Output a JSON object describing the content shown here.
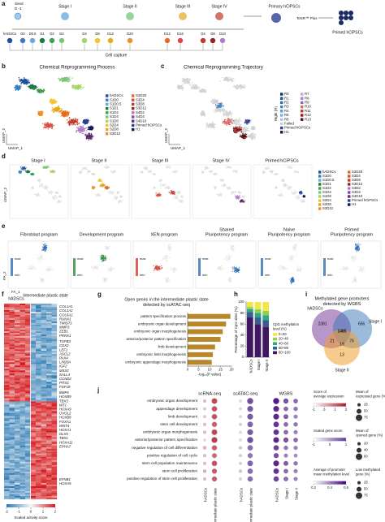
{
  "panel_labels": [
    "a",
    "b",
    "c",
    "d",
    "e",
    "f",
    "g",
    "h",
    "i",
    "j"
  ],
  "a": {
    "seed": "Seed",
    "seed_day": "D -1",
    "stages": [
      "Stage I",
      "Stage II",
      "Stage III",
      "Stage IV"
    ],
    "primary": "Primary hCiPSCs",
    "medium": "TeSR™ Plus",
    "primed": "Primed hCiPSCs",
    "capture": "Cell capture",
    "timepoints": [
      "hADSCs",
      "D0",
      "D0.5",
      "D1",
      "D2",
      "D4",
      "D4",
      "D8",
      "D12",
      "D20",
      "D12",
      "D16",
      "D4",
      "D8",
      "D10"
    ]
  },
  "b": {
    "title": "Chemical Reprogramming Process",
    "x_label": "UMAP_1",
    "y_label": "UMAP_2",
    "legend": [
      "hADSCs",
      "S1D0",
      "S1D0.5",
      "S1D1",
      "S1D2",
      "S1D4",
      "S1D8",
      "S2D4",
      "S2D8",
      "S2D12",
      "S2D20",
      "S3D4",
      "S3D8",
      "S3D12",
      "S4D2",
      "S4D4",
      "S4D10",
      "Primed hCiPSCs",
      "H1"
    ],
    "colors": [
      "#1f4e9c",
      "#3a7cc7",
      "#6aa8dd",
      "#1e7a45",
      "#3da04f",
      "#7cc576",
      "#a5d36b",
      "#f4c430",
      "#e6a817",
      "#f28c28",
      "#e8691f",
      "#d94a3d",
      "#c0392b",
      "#93262a",
      "#b07cc6",
      "#8e44ad",
      "#5b2c6f",
      "#2c3e91",
      "#0d1b4c"
    ]
  },
  "c": {
    "title": "Chemical Reprogramming Trajectory",
    "x_label": "UMAP_1",
    "y_label": "UMAP_2",
    "legend_title": "Right (R)",
    "legend": [
      "R0",
      "R1",
      "R2",
      "R3",
      "R4",
      "R5",
      "R6",
      "R7",
      "R8",
      "R9",
      "R10",
      "R11",
      "R12",
      "R13",
      "Failed",
      "Primed hCiPSCs",
      "H1"
    ],
    "colors": [
      "#08306b",
      "#1d4f91",
      "#2b6cb0",
      "#3f86c6",
      "#5b9bd5",
      "#7eb3e0",
      "#a6c8ea",
      "#c9a0dc",
      "#b07cc6",
      "#9a5fb5",
      "#d96a6a",
      "#c0392b",
      "#8e1b1b",
      "#5a0f0f",
      "#cfcfcf",
      "#2c3e91",
      "#0d1b4c"
    ]
  },
  "d": {
    "titles": [
      "Stage I",
      "Stage II",
      "Stage III",
      "Stage IV",
      "Primed hCiPSCs"
    ],
    "y_label": "UMAP_2"
  },
  "e": {
    "titles": [
      [
        "Fibroblast program"
      ],
      [
        "Development program"
      ],
      [
        "XEN program"
      ],
      [
        "Shared",
        "Pluripotency program"
      ],
      [
        "Naive",
        "Pluripotency program"
      ],
      [
        "Primed",
        "Pluripotency program"
      ]
    ],
    "colors": [
      "#2f6db3",
      "#2e8b3e",
      "#d43c2c",
      "#2f6db3",
      "#2f6db3",
      "#2f6db3"
    ],
    "max": "max",
    "min": "min",
    "x_label": "FA_1",
    "y_label": "FA_2"
  },
  "f": {
    "columns": [
      "hADSCs",
      "Intermediate plastic state"
    ],
    "gene_groups": [
      [
        "COL1A1",
        "COL1A2",
        "COL6A2",
        "RUNX1",
        "TWIST1",
        "MMP3",
        "ZEB1",
        "PRRX1"
      ],
      [
        "TGFB3",
        "CDX2",
        "LEF1",
        "ASCL2",
        "PAX4",
        "LIN28A",
        "IGF2",
        "MSX2",
        "SALL4",
        "CCND2",
        "PITX1",
        "FGF19"
      ],
      [
        "BMP4",
        "HOXB9",
        "TBX3",
        "WT1",
        "HOXA9",
        "OVOL2",
        "HOXB8",
        "FOXA1",
        "WNT4",
        "HOXA1",
        "DLX5",
        "TBX1",
        "HOXA11",
        "EPHA7"
      ],
      [
        "EFNB1",
        "HOXA5"
      ]
    ],
    "colorbar_title": "Scaled activity score",
    "colorbar_ticks": [
      -2,
      -1,
      0,
      1,
      2
    ]
  },
  "chart_data": [
    {
      "type": "bar",
      "orientation": "horizontal",
      "title": [
        "Open genes in the intermediate plastic state",
        "detected by scATAC-seq"
      ],
      "categories": [
        "pattern specification process",
        "embryonic organ development",
        "embryonic organ morphogenesis",
        "anterior/posterior pattern specification",
        "limb development",
        "embryonic limb morphogenesis",
        "embryonic appendage morphogenesis"
      ],
      "values": [
        19.5,
        17.5,
        16,
        15,
        12.5,
        11.5,
        11
      ],
      "color": "#b8862b",
      "xlabel": "-log₁₀(P value)",
      "xlim": [
        0,
        20
      ],
      "xticks": [
        0,
        5,
        10,
        15,
        20
      ]
    },
    {
      "type": "stacked_bar",
      "ylabel": "Percentage of CpG sites (%)",
      "categories": [
        "hADSCs",
        "Stage I",
        "Stage II"
      ],
      "legend_title": [
        "CpG methylation",
        "level (%)"
      ],
      "series": [
        {
          "name": "0~20",
          "color": "#f3e64a",
          "values": [
            9,
            13,
            16
          ]
        },
        {
          "name": "20~40",
          "color": "#8fd14f",
          "values": [
            4,
            7,
            8
          ]
        },
        {
          "name": "40~60",
          "color": "#2aa889",
          "values": [
            5,
            8,
            9
          ]
        },
        {
          "name": "60~80",
          "color": "#35608d",
          "values": [
            10,
            12,
            12
          ]
        },
        {
          "name": "80~100",
          "color": "#3f1763",
          "values": [
            72,
            60,
            55
          ]
        }
      ],
      "ylim": [
        0,
        100
      ],
      "yticks": [
        0,
        20,
        40,
        60,
        80,
        100
      ]
    }
  ],
  "i": {
    "title": [
      "Methylated gene promoters",
      "detected by WGBS"
    ],
    "sets": [
      "hADSCs",
      "Stage I",
      "Stage II"
    ],
    "counts": [
      2381,
      656,
      1485,
      21,
      76,
      19,
      13
    ]
  },
  "j": {
    "groups": [
      "scRNA-seq",
      "scATAC-seq",
      "WGBS"
    ],
    "columns": [
      "hADSCs",
      "Intermediate plastic state",
      "hADSCs",
      "Intermediate plastic state",
      "hADSCs",
      "Stage I",
      "Stage II"
    ],
    "terms": [
      "embryonic organ development",
      "appendage development",
      "limb development",
      "stem cell development",
      "embryonic organ morphogenesis",
      "anterior/posterior pattern specification",
      "negative regulation of cell differentiation",
      "positive regulation of cell cycle",
      "stem cell population maintenance",
      "stem cell proliferation",
      "positive regulation of stem cell proliferation"
    ],
    "sizes": [
      [
        0.3,
        0.8,
        0.2,
        0.9,
        0.9,
        0.7,
        0.6
      ],
      [
        0.25,
        0.75,
        0.2,
        0.85,
        0.85,
        0.6,
        0.55
      ],
      [
        0.25,
        0.75,
        0.2,
        0.85,
        0.85,
        0.65,
        0.5
      ],
      [
        0.3,
        0.7,
        0.25,
        0.8,
        0.8,
        0.6,
        0.55
      ],
      [
        0.3,
        0.8,
        0.2,
        0.85,
        0.8,
        0.6,
        0.5
      ],
      [
        0.2,
        0.85,
        0.2,
        0.9,
        0.85,
        0.7,
        0.6
      ],
      [
        0.35,
        0.7,
        0.3,
        0.75,
        0.75,
        0.55,
        0.5
      ],
      [
        0.3,
        0.65,
        0.25,
        0.7,
        0.7,
        0.5,
        0.45
      ],
      [
        0.3,
        0.75,
        0.25,
        0.8,
        0.85,
        0.65,
        0.55
      ],
      [
        0.35,
        0.7,
        0.3,
        0.75,
        0.8,
        0.6,
        0.5
      ],
      [
        0.3,
        0.7,
        0.25,
        0.75,
        0.75,
        0.6,
        0.5
      ]
    ],
    "legends": [
      {
        "title": [
          "Score of",
          "average expression"
        ],
        "ticks": [
          -1,
          0,
          1,
          2
        ]
      },
      {
        "title": [
          "Mean of",
          "expressed gene (%)"
        ],
        "sizes": [
          25,
          50,
          75
        ]
      },
      {
        "title": [
          "Scaled gene score"
        ],
        "ticks": [
          -1,
          0,
          1
        ]
      },
      {
        "title": [
          "Mean of",
          "opened gene (%)"
        ],
        "sizes": [
          20,
          40,
          60
        ]
      },
      {
        "title": [
          "Average of promoter",
          "mean methylation level"
        ],
        "ticks": [
          0.2,
          0.4,
          0.6
        ]
      },
      {
        "title": [
          "Low methylated",
          "gene (%)"
        ],
        "sizes": [
          25,
          50,
          75
        ]
      }
    ]
  }
}
